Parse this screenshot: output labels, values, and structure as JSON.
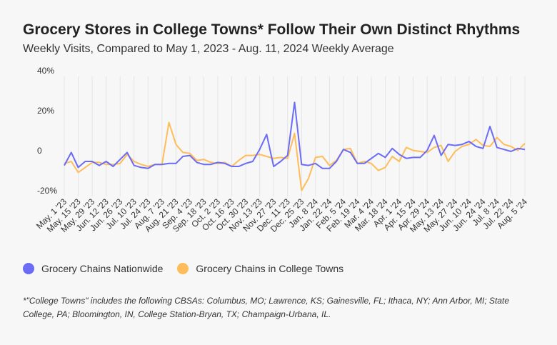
{
  "header": {
    "title": "Grocery Stores in College Towns* Follow Their Own Distinct Rhythms",
    "subtitle": "Weekly Visits, Compared to May 1, 2023 - Aug. 11, 2024 Weekly Average"
  },
  "footnote": "*\"College Towns\" includes the following CBSAs: Columbus, MO; Lawrence, KS; Gainesville, FL; Ithaca, NY; Ann Arbor, MI; State College, PA; Bloomington, IN, College Station-Bryan, TX; Champaign-Urbana, IL.",
  "chart_data": {
    "type": "line",
    "title": "Grocery Stores in College Towns* Follow Their Own Distinct Rhythms",
    "subtitle": "Weekly Visits, Compared to May 1, 2023 - Aug. 11, 2024 Weekly Average",
    "xlabel": "",
    "ylabel": "",
    "ylim": [
      -20,
      40
    ],
    "yticks": [
      40,
      20,
      0,
      -20
    ],
    "ytick_labels": [
      "40%",
      "20%",
      "0",
      "-20%"
    ],
    "grid": "vertical",
    "legend_position": "bottom",
    "x": [
      "May. 1 '23",
      "May. 8 '23",
      "May. 15 '23",
      "May. 22 '23",
      "May. 29 '23",
      "Jun. 5 '23",
      "Jun. 12 '23",
      "Jun. 19 '23",
      "Jun. 26 '23",
      "Jul. 3 '23",
      "Jul. 10 '23",
      "Jul. 17 '23",
      "Jul. 24 '23",
      "Jul. 31 '23",
      "Aug. 7 '23",
      "Aug. 14 '23",
      "Aug. 21 '23",
      "Aug. 28 '23",
      "Sep. 4 '23",
      "Sep. 11 '23",
      "Sep. 18 '23",
      "Sep. 25 '23",
      "Oct. 2 '23",
      "Oct. 9 '23",
      "Oct. 16 '23",
      "Oct. 23 '23",
      "Oct. 30 '23",
      "Nov. 6 '23",
      "Nov. 13 '23",
      "Nov. 20 '23",
      "Nov. 27 '23",
      "Dec. 4 '23",
      "Dec. 11 '23",
      "Dec. 18 '23",
      "Dec. 25 '23",
      "Jan. 1 '24",
      "Jan. 8 '24",
      "Jan. 15 '24",
      "Jan. 22 '24",
      "Jan. 29 '24",
      "Feb. 5 '24",
      "Feb. 12 '24",
      "Feb. 19 '24",
      "Feb. 26 '24",
      "Mar. 4 '24",
      "Mar. 11 '24",
      "Mar. 18 '24",
      "Mar. 25 '24",
      "Apr. 1 '24",
      "Apr. 8 '24",
      "Apr. 15 '24",
      "Apr. 22 '24",
      "Apr. 29 '24",
      "May. 6 '24",
      "May. 13 '24",
      "May. 20 '24",
      "May. 27 '24",
      "Jun. 3 '24",
      "Jun. 10 '24",
      "Jun. 17 '24",
      "Jun. 24 '24",
      "Jul. 1 '24",
      "Jul. 8 '24",
      "Jul. 15 '24",
      "Jul. 22 '24",
      "Jul. 29 '24",
      "Aug. 5 '24"
    ],
    "tick_labels": [
      "May. 1 '23",
      "May. 15 '23",
      "May. 29 '23",
      "Jun. 12 '23",
      "Jun. 26 '23",
      "Jul. 10 '23",
      "Jul. 24 '23",
      "Aug. 7 '23",
      "Aug. 21 '23",
      "Sep. 4 '23",
      "Sep. 18 '23",
      "Oct. 2 '23",
      "Oct. 16 '23",
      "Oct. 30 '23",
      "Nov. 13 '23",
      "Nov. 27 '23",
      "Dec. 11 '23",
      "Dec. 25 '23",
      "Jan. 8 '24",
      "Jan. 22 '24",
      "Feb. 5 '24",
      "Feb. 19 '24",
      "Mar. 4 '24",
      "Mar. 18 '24",
      "Apr. 1 '24",
      "Apr. 15 '24",
      "Apr. 29 '24",
      "May. 13 '24",
      "May. 27 '24",
      "Jun. 10 '24",
      "Jun. 24 '24",
      "Jul. 8 '24",
      "Jul. 22 '24",
      "Aug. 5 '24"
    ],
    "series": [
      {
        "name": "Grocery Chains Nationwide",
        "color": "#6b6cf5",
        "values": [
          -4.5,
          2,
          -5.5,
          -2.5,
          -2.5,
          -4.5,
          -2.5,
          -5,
          -1.5,
          2,
          -4.5,
          -5.5,
          -6,
          -4,
          -4,
          -3.5,
          -3.5,
          0,
          0.5,
          -3,
          -4,
          -4,
          -3,
          -3.5,
          -5,
          -5,
          -3.5,
          -2.5,
          3.5,
          11,
          -5,
          -2.5,
          0.5,
          27,
          -4,
          -4.5,
          -3.5,
          -6,
          -6,
          -2.5,
          3.5,
          2,
          -3.5,
          -3.5,
          -1,
          1.5,
          -0.5,
          4,
          1,
          -1,
          -0.5,
          -0.5,
          3,
          10.5,
          0.5,
          6,
          5.5,
          6,
          7.5,
          5,
          4,
          15,
          4.5,
          3.5,
          2.5,
          4,
          3.5
        ]
      },
      {
        "name": "Grocery Chains in College Towns",
        "color": "#ffbd59",
        "values": [
          -3.5,
          -2.5,
          -8,
          -5.5,
          -3,
          -3,
          -4,
          -4,
          -3.5,
          1,
          -2.5,
          -4,
          -5,
          -4,
          -4,
          17,
          6,
          2,
          1.5,
          -2,
          -1.5,
          -3,
          -3.5,
          -3,
          -5,
          -2,
          0.5,
          0.5,
          1,
          0,
          -1,
          -0.5,
          -1,
          11.5,
          -17,
          -11,
          -0.5,
          0,
          -4.5,
          -2,
          3.5,
          4,
          -3.5,
          -2.5,
          -3.5,
          -7,
          -5.5,
          0,
          -2.5,
          4.5,
          3,
          2.5,
          2,
          4.5,
          5.5,
          -2.5,
          2.5,
          5,
          6,
          8.5,
          5.5,
          5,
          9.5,
          6,
          5,
          3,
          6.5
        ]
      }
    ]
  }
}
